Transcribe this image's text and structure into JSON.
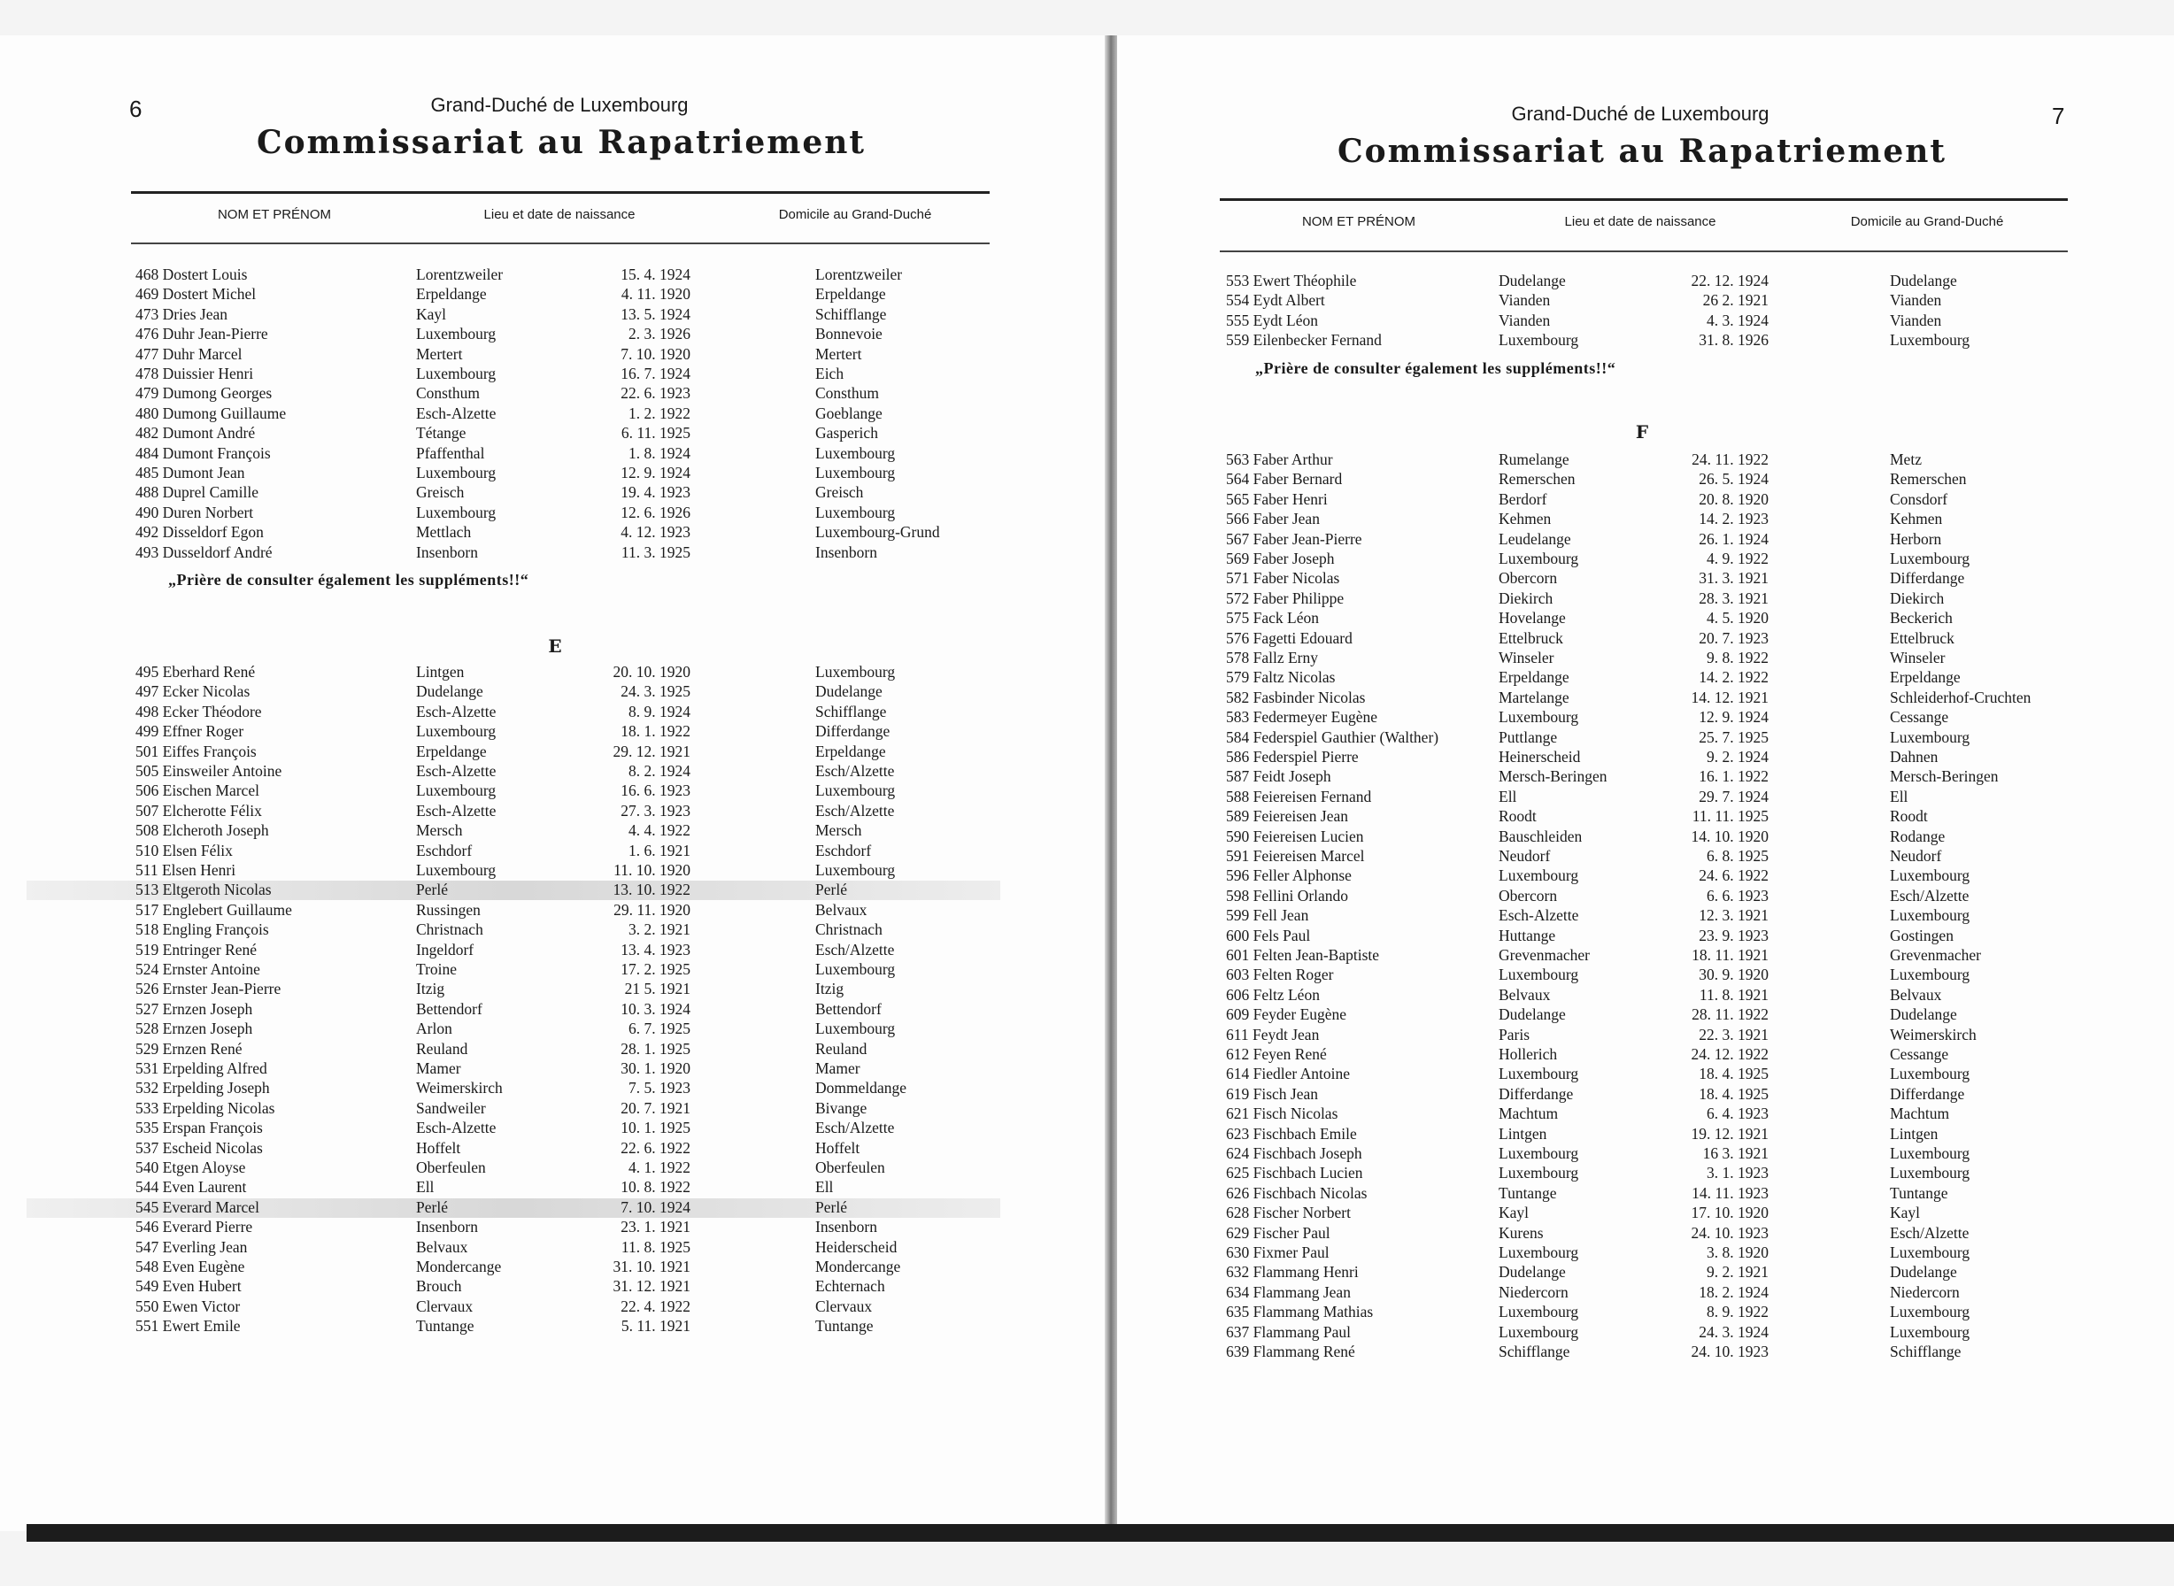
{
  "left_page": {
    "page_number": "6",
    "country": "Grand-Duché de Luxembourg",
    "title": "Commissariat au Rapatriement",
    "headers": [
      "NOM ET PRÉNOM",
      "Lieu et date de naissance",
      "Domicile au Grand-Duché"
    ],
    "section_d_rows": [
      [
        "468",
        "Dostert Louis",
        "Lorentzweiler",
        "15. 4. 1924",
        "Lorentzweiler"
      ],
      [
        "469",
        "Dostert Michel",
        "Erpeldange",
        "4. 11. 1920",
        "Erpeldange"
      ],
      [
        "473",
        "Dries Jean",
        "Kayl",
        "13. 5. 1924",
        "Schifflange"
      ],
      [
        "476",
        "Duhr Jean-Pierre",
        "Luxembourg",
        "2. 3. 1926",
        "Bonnevoie"
      ],
      [
        "477",
        "Duhr Marcel",
        "Mertert",
        "7. 10. 1920",
        "Mertert"
      ],
      [
        "478",
        "Duissier Henri",
        "Luxembourg",
        "16. 7. 1924",
        "Eich"
      ],
      [
        "479",
        "Dumong Georges",
        "Consthum",
        "22. 6. 1923",
        "Consthum"
      ],
      [
        "480",
        "Dumong Guillaume",
        "Esch-Alzette",
        "1. 2. 1922",
        "Goeblange"
      ],
      [
        "482",
        "Dumont André",
        "Tétange",
        "6. 11. 1925",
        "Gasperich"
      ],
      [
        "484",
        "Dumont François",
        "Pfaffenthal",
        "1. 8. 1924",
        "Luxembourg"
      ],
      [
        "485",
        "Dumont Jean",
        "Luxembourg",
        "12. 9. 1924",
        "Luxembourg"
      ],
      [
        "488",
        "Duprel Camille",
        "Greisch",
        "19. 4. 1923",
        "Greisch"
      ],
      [
        "490",
        "Duren Norbert",
        "Luxembourg",
        "12. 6. 1926",
        "Luxembourg"
      ],
      [
        "492",
        "Disseldorf Egon",
        "Mettlach",
        "4. 12. 1923",
        "Luxembourg-Grund"
      ],
      [
        "493",
        "Dusseldorf André",
        "Insenborn",
        "11. 3. 1925",
        "Insenborn"
      ]
    ],
    "note": "„Prière de consulter également les suppléments!!“",
    "section_letter": "E",
    "section_e_rows": [
      [
        "495",
        "Eberhard René",
        "Lintgen",
        "20. 10. 1920",
        "Luxembourg"
      ],
      [
        "497",
        "Ecker Nicolas",
        "Dudelange",
        "24. 3. 1925",
        "Dudelange"
      ],
      [
        "498",
        "Ecker Théodore",
        "Esch-Alzette",
        "8. 9. 1924",
        "Schifflange"
      ],
      [
        "499",
        "Effner Roger",
        "Luxembourg",
        "18. 1. 1922",
        "Differdange"
      ],
      [
        "501",
        "Eiffes François",
        "Erpeldange",
        "29. 12. 1921",
        "Erpeldange"
      ],
      [
        "505",
        "Einsweiler Antoine",
        "Esch-Alzette",
        "8. 2. 1924",
        "Esch/Alzette"
      ],
      [
        "506",
        "Eischen Marcel",
        "Luxembourg",
        "16. 6. 1923",
        "Luxembourg"
      ],
      [
        "507",
        "Elcherotte Félix",
        "Esch-Alzette",
        "27. 3. 1923",
        "Esch/Alzette"
      ],
      [
        "508",
        "Elcheroth Joseph",
        "Mersch",
        "4. 4. 1922",
        "Mersch"
      ],
      [
        "510",
        "Elsen Félix",
        "Eschdorf",
        "1. 6. 1921",
        "Eschdorf"
      ],
      [
        "511",
        "Elsen Henri",
        "Luxembourg",
        "11. 10. 1920",
        "Luxembourg"
      ],
      [
        "513",
        "Eltgeroth Nicolas",
        "Perlé",
        "13. 10. 1922",
        "Perlé"
      ],
      [
        "517",
        "Englebert Guillaume",
        "Russingen",
        "29. 11. 1920",
        "Belvaux"
      ],
      [
        "518",
        "Engling François",
        "Christnach",
        "3. 2. 1921",
        "Christnach"
      ],
      [
        "519",
        "Entringer René",
        "Ingeldorf",
        "13. 4. 1923",
        "Esch/Alzette"
      ],
      [
        "524",
        "Ernster Antoine",
        "Troine",
        "17. 2. 1925",
        "Luxembourg"
      ],
      [
        "526",
        "Ernster Jean-Pierre",
        "Itzig",
        "21 5. 1921",
        "Itzig"
      ],
      [
        "527",
        "Ernzen Joseph",
        "Bettendorf",
        "10. 3. 1924",
        "Bettendorf"
      ],
      [
        "528",
        "Ernzen Joseph",
        "Arlon",
        "6. 7. 1925",
        "Luxembourg"
      ],
      [
        "529",
        "Ernzen René",
        "Reuland",
        "28. 1. 1925",
        "Reuland"
      ],
      [
        "531",
        "Erpelding Alfred",
        "Mamer",
        "30. 1. 1920",
        "Mamer"
      ],
      [
        "532",
        "Erpelding Joseph",
        "Weimerskirch",
        "7. 5. 1923",
        "Dommeldange"
      ],
      [
        "533",
        "Erpelding Nicolas",
        "Sandweiler",
        "20. 7. 1921",
        "Bivange"
      ],
      [
        "535",
        "Erspan François",
        "Esch-Alzette",
        "10. 1. 1925",
        "Esch/Alzette"
      ],
      [
        "537",
        "Escheid Nicolas",
        "Hoffelt",
        "22. 6. 1922",
        "Hoffelt"
      ],
      [
        "540",
        "Etgen Aloyse",
        "Oberfeulen",
        "4. 1. 1922",
        "Oberfeulen"
      ],
      [
        "544",
        "Even Laurent",
        "Ell",
        "10. 8. 1922",
        "Ell"
      ],
      [
        "545",
        "Everard Marcel",
        "Perlé",
        "7. 10. 1924",
        "Perlé"
      ],
      [
        "546",
        "Everard Pierre",
        "Insenborn",
        "23. 1. 1921",
        "Insenborn"
      ],
      [
        "547",
        "Everling Jean",
        "Belvaux",
        "11. 8. 1925",
        "Heiderscheid"
      ],
      [
        "548",
        "Even Eugène",
        "Mondercange",
        "31. 10. 1921",
        "Mondercange"
      ],
      [
        "549",
        "Even Hubert",
        "Brouch",
        "31. 12. 1921",
        "Echternach"
      ],
      [
        "550",
        "Ewen Victor",
        "Clervaux",
        "22. 4. 1922",
        "Clervaux"
      ],
      [
        "551",
        "Ewert Emile",
        "Tuntange",
        "5. 11. 1921",
        "Tuntange"
      ]
    ]
  },
  "right_page": {
    "page_number": "7",
    "country": "Grand-Duché de Luxembourg",
    "title": "Commissariat au Rapatriement",
    "headers": [
      "NOM ET PRÉNOM",
      "Lieu et date de naissance",
      "Domicile au Grand-Duché"
    ],
    "section_e_rows": [
      [
        "553",
        "Ewert Théophile",
        "Dudelange",
        "22. 12. 1924",
        "Dudelange"
      ],
      [
        "554",
        "Eydt Albert",
        "Vianden",
        "26 2. 1921",
        "Vianden"
      ],
      [
        "555",
        "Eydt Léon",
        "Vianden",
        "4. 3. 1924",
        "Vianden"
      ],
      [
        "559",
        "Eilenbecker Fernand",
        "Luxembourg",
        "31. 8. 1926",
        "Luxembourg"
      ]
    ],
    "note": "„Prière de consulter également les suppléments!!“",
    "section_letter": "F",
    "section_f_rows": [
      [
        "563",
        "Faber Arthur",
        "Rumelange",
        "24. 11. 1922",
        "Metz"
      ],
      [
        "564",
        "Faber Bernard",
        "Remerschen",
        "26. 5. 1924",
        "Remerschen"
      ],
      [
        "565",
        "Faber Henri",
        "Berdorf",
        "20. 8. 1920",
        "Consdorf"
      ],
      [
        "566",
        "Faber Jean",
        "Kehmen",
        "14. 2. 1923",
        "Kehmen"
      ],
      [
        "567",
        "Faber Jean-Pierre",
        "Leudelange",
        "26. 1. 1924",
        "Herborn"
      ],
      [
        "569",
        "Faber Joseph",
        "Luxembourg",
        "4. 9. 1922",
        "Luxembourg"
      ],
      [
        "571",
        "Faber Nicolas",
        "Obercorn",
        "31. 3. 1921",
        "Differdange"
      ],
      [
        "572",
        "Faber Philippe",
        "Diekirch",
        "28. 3. 1921",
        "Diekirch"
      ],
      [
        "575",
        "Fack Léon",
        "Hovelange",
        "4. 5. 1920",
        "Beckerich"
      ],
      [
        "576",
        "Fagetti Edouard",
        "Ettelbruck",
        "20. 7. 1923",
        "Ettelbruck"
      ],
      [
        "578",
        "Fallz Erny",
        "Winseler",
        "9. 8. 1922",
        "Winseler"
      ],
      [
        "579",
        "Faltz Nicolas",
        "Erpeldange",
        "14. 2. 1922",
        "Erpeldange"
      ],
      [
        "582",
        "Fasbinder Nicolas",
        "Martelange",
        "14. 12. 1921",
        "Schleiderhof-Cruchten"
      ],
      [
        "583",
        "Federmeyer Eugène",
        "Luxembourg",
        "12. 9. 1924",
        "Cessange"
      ],
      [
        "584",
        "Federspiel Gauthier (Walther)",
        "Puttlange",
        "25. 7. 1925",
        "Luxembourg"
      ],
      [
        "586",
        "Federspiel Pierre",
        "Heinerscheid",
        "9. 2. 1924",
        "Dahnen"
      ],
      [
        "587",
        "Feidt Joseph",
        "Mersch-Beringen",
        "16. 1. 1922",
        "Mersch-Beringen"
      ],
      [
        "588",
        "Feiereisen Fernand",
        "Ell",
        "29. 7. 1924",
        "Ell"
      ],
      [
        "589",
        "Feiereisen Jean",
        "Roodt",
        "11. 11. 1925",
        "Roodt"
      ],
      [
        "590",
        "Feiereisen Lucien",
        "Bauschleiden",
        "14. 10. 1920",
        "Rodange"
      ],
      [
        "591",
        "Feiereisen Marcel",
        "Neudorf",
        "6. 8. 1925",
        "Neudorf"
      ],
      [
        "596",
        "Feller Alphonse",
        "Luxembourg",
        "24. 6. 1922",
        "Luxembourg"
      ],
      [
        "598",
        "Fellini Orlando",
        "Obercorn",
        "6. 6. 1923",
        "Esch/Alzette"
      ],
      [
        "599",
        "Fell Jean",
        "Esch-Alzette",
        "12. 3. 1921",
        "Luxembourg"
      ],
      [
        "600",
        "Fels Paul",
        "Huttange",
        "23. 9. 1923",
        "Gostingen"
      ],
      [
        "601",
        "Felten Jean-Baptiste",
        "Grevenmacher",
        "18. 11. 1921",
        "Grevenmacher"
      ],
      [
        "603",
        "Felten Roger",
        "Luxembourg",
        "30. 9. 1920",
        "Luxembourg"
      ],
      [
        "606",
        "Feltz Léon",
        "Belvaux",
        "11. 8. 1921",
        "Belvaux"
      ],
      [
        "609",
        "Feyder Eugène",
        "Dudelange",
        "28. 11. 1922",
        "Dudelange"
      ],
      [
        "611",
        "Feydt Jean",
        "Paris",
        "22. 3. 1921",
        "Weimerskirch"
      ],
      [
        "612",
        "Feyen René",
        "Hollerich",
        "24. 12. 1922",
        "Cessange"
      ],
      [
        "614",
        "Fiedler Antoine",
        "Luxembourg",
        "18. 4. 1925",
        "Luxembourg"
      ],
      [
        "619",
        "Fisch Jean",
        "Differdange",
        "18. 4. 1925",
        "Differdange"
      ],
      [
        "621",
        "Fisch Nicolas",
        "Machtum",
        "6. 4. 1923",
        "Machtum"
      ],
      [
        "623",
        "Fischbach Emile",
        "Lintgen",
        "19. 12. 1921",
        "Lintgen"
      ],
      [
        "624",
        "Fischbach Joseph",
        "Luxembourg",
        "16 3. 1921",
        "Luxembourg"
      ],
      [
        "625",
        "Fischbach Lucien",
        "Luxembourg",
        "3. 1. 1923",
        "Luxembourg"
      ],
      [
        "626",
        "Fischbach Nicolas",
        "Tuntange",
        "14. 11. 1923",
        "Tuntange"
      ],
      [
        "628",
        "Fischer Norbert",
        "Kayl",
        "17. 10. 1920",
        "Kayl"
      ],
      [
        "629",
        "Fischer Paul",
        "Kurens",
        "24. 10. 1923",
        "Esch/Alzette"
      ],
      [
        "630",
        "Fixmer Paul",
        "Luxembourg",
        "3. 8. 1920",
        "Luxembourg"
      ],
      [
        "632",
        "Flammang Henri",
        "Dudelange",
        "9. 2. 1921",
        "Dudelange"
      ],
      [
        "634",
        "Flammang Jean",
        "Niedercorn",
        "18. 2. 1924",
        "Niedercorn"
      ],
      [
        "635",
        "Flammang Mathias",
        "Luxembourg",
        "8. 9. 1922",
        "Luxembourg"
      ],
      [
        "637",
        "Flammang Paul",
        "Luxembourg",
        "24. 3. 1924",
        "Luxembourg"
      ],
      [
        "639",
        "Flammang René",
        "Schifflange",
        "24. 10. 1923",
        "Schifflange"
      ]
    ]
  },
  "highlighted_entries": [
    "513",
    "545"
  ]
}
